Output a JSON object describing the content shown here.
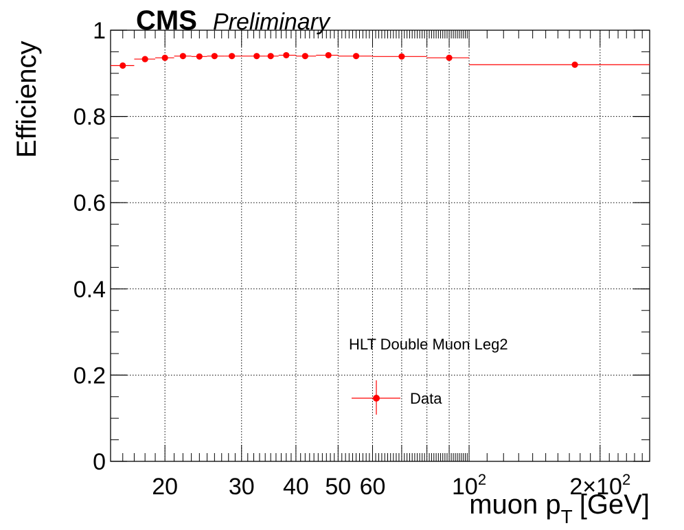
{
  "header": {
    "cms_label": "CMS",
    "preliminary_label": "Preliminary"
  },
  "chart_data": {
    "type": "scatter",
    "title": "",
    "xlabel": "muon p",
    "xlabel_sub": "T",
    "xlabel_unit": "[GeV]",
    "ylabel": "Efficiency",
    "x_scale": "log",
    "xlim": [
      15,
      260
    ],
    "ylim": [
      0,
      1.0
    ],
    "grid": true,
    "yticks": [
      {
        "value": 0,
        "label": "0"
      },
      {
        "value": 0.2,
        "label": "0.2"
      },
      {
        "value": 0.4,
        "label": "0.4"
      },
      {
        "value": 0.6,
        "label": "0.6"
      },
      {
        "value": 0.8,
        "label": "0.8"
      },
      {
        "value": 1.0,
        "label": "1"
      }
    ],
    "xticks": [
      {
        "value": 20,
        "label": "20"
      },
      {
        "value": 30,
        "label": "30"
      },
      {
        "value": 40,
        "label": "40"
      },
      {
        "value": 50,
        "label": "50"
      },
      {
        "value": 60,
        "label": "60"
      },
      {
        "value": 100,
        "label": "10",
        "sup": "2"
      },
      {
        "value": 200,
        "label": "2×10",
        "sup": "2"
      }
    ],
    "annotation": "HLT Double Muon Leg2",
    "legend": {
      "position": "bottom-center",
      "entries": [
        "Data"
      ]
    },
    "series": [
      {
        "name": "Data",
        "color": "#ff0000",
        "points": [
          {
            "x": 16.0,
            "xlo": 15.0,
            "xhi": 17.0,
            "y": 0.918
          },
          {
            "x": 18.0,
            "xlo": 17.0,
            "xhi": 19.0,
            "y": 0.933
          },
          {
            "x": 20.0,
            "xlo": 19.0,
            "xhi": 21.0,
            "y": 0.936
          },
          {
            "x": 22.0,
            "xlo": 21.0,
            "xhi": 23.0,
            "y": 0.94
          },
          {
            "x": 24.0,
            "xlo": 23.0,
            "xhi": 25.0,
            "y": 0.939
          },
          {
            "x": 26.0,
            "xlo": 25.0,
            "xhi": 27.5,
            "y": 0.94
          },
          {
            "x": 28.5,
            "xlo": 27.5,
            "xhi": 30.0,
            "y": 0.94
          },
          {
            "x": 32.5,
            "xlo": 30.0,
            "xhi": 34.0,
            "y": 0.94
          },
          {
            "x": 35.0,
            "xlo": 34.0,
            "xhi": 36.5,
            "y": 0.94
          },
          {
            "x": 38.0,
            "xlo": 36.5,
            "xhi": 40.0,
            "y": 0.942
          },
          {
            "x": 42.0,
            "xlo": 40.0,
            "xhi": 44.5,
            "y": 0.94
          },
          {
            "x": 47.5,
            "xlo": 44.5,
            "xhi": 50.0,
            "y": 0.942
          },
          {
            "x": 55.0,
            "xlo": 50.0,
            "xhi": 60.0,
            "y": 0.94
          },
          {
            "x": 70.0,
            "xlo": 60.0,
            "xhi": 80.0,
            "y": 0.939
          },
          {
            "x": 90.0,
            "xlo": 80.0,
            "xhi": 100.0,
            "y": 0.936
          },
          {
            "x": 175.0,
            "xlo": 100.0,
            "xhi": 260.0,
            "y": 0.92
          }
        ]
      }
    ]
  }
}
